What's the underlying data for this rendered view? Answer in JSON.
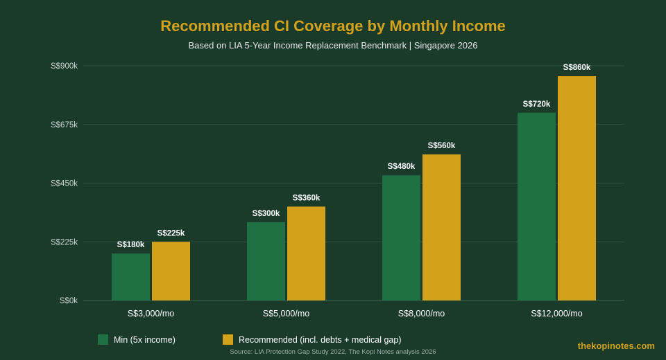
{
  "title": "Recommended CI Coverage by Monthly Income",
  "subtitle": "Based on LIA 5-Year Income Replacement Benchmark | Singapore 2026",
  "source": "Source: LIA Protection Gap Study 2022, The Kopi Notes analysis 2026",
  "brand": "thekopinotes.com",
  "colors": {
    "background": "#1a3a2a",
    "title": "#d4a21a",
    "series_min": "#1f7042",
    "series_recommended": "#d4a21a"
  },
  "chart_data": {
    "type": "bar",
    "title": "Recommended CI Coverage by Monthly Income",
    "subtitle": "Based on LIA 5-Year Income Replacement Benchmark | Singapore 2026",
    "categories": [
      "S$3,000/mo",
      "S$5,000/mo",
      "S$8,000/mo",
      "S$12,000/mo"
    ],
    "series": [
      {
        "name": "Min (5x income)",
        "color": "#1f7042",
        "values": [
          180000,
          300000,
          480000,
          720000
        ],
        "labels": [
          "S$180k",
          "S$300k",
          "S$480k",
          "S$720k"
        ]
      },
      {
        "name": "Recommended (incl. debts + medical gap)",
        "color": "#d4a21a",
        "values": [
          225000,
          360000,
          560000,
          860000
        ],
        "labels": [
          "S$225k",
          "S$360k",
          "S$560k",
          "S$860k"
        ]
      }
    ],
    "ylim": [
      0,
      900000
    ],
    "yticks": [
      0,
      225000,
      450000,
      675000,
      900000
    ],
    "ytick_labels": [
      "S$0k",
      "S$225k",
      "S$450k",
      "S$675k",
      "S$900k"
    ],
    "grid": true,
    "legend_position": "bottom-left"
  }
}
